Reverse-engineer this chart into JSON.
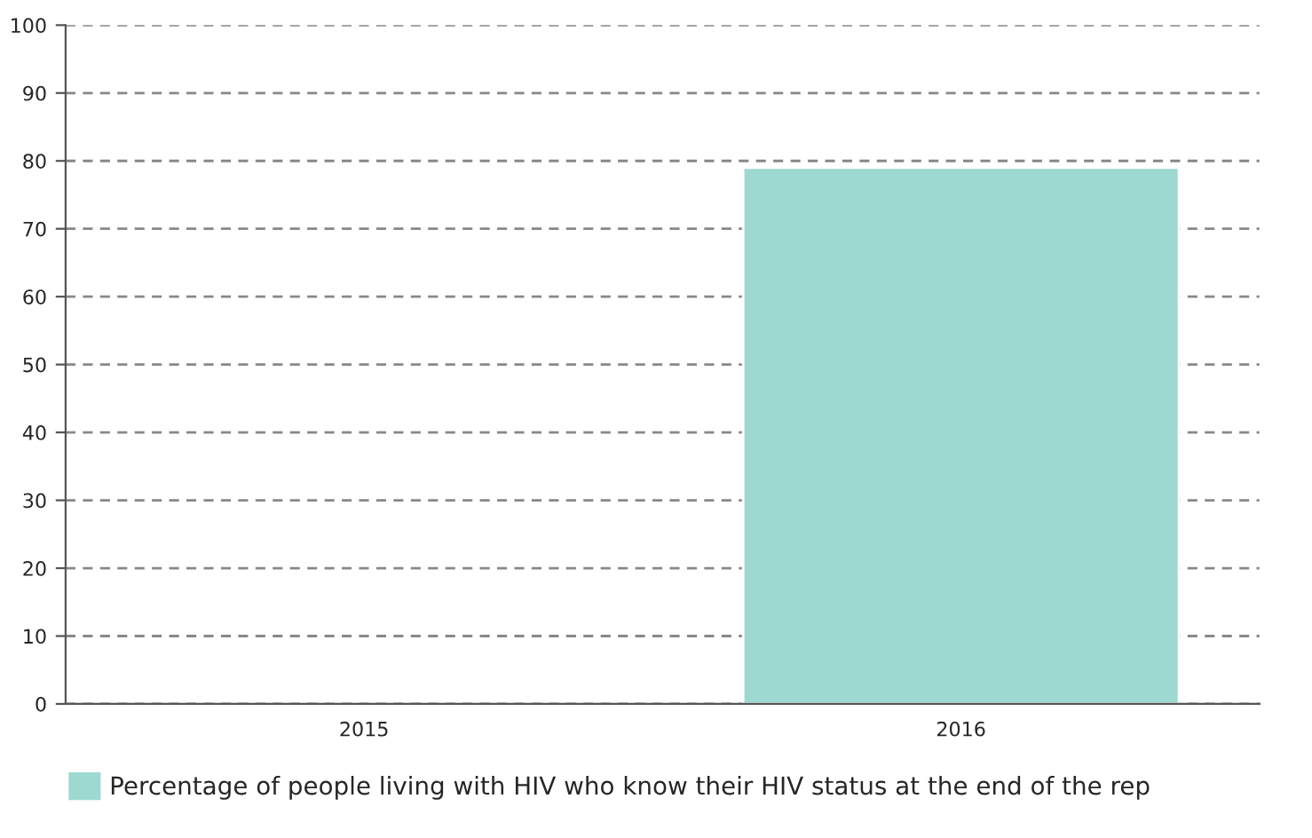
{
  "chart_data": {
    "type": "bar",
    "categories": [
      "2015",
      "2016"
    ],
    "series": [
      {
        "name": "Percentage of people living with HIV who know their HIV status at the end of the rep",
        "color": "#9dd8d1",
        "values": [
          null,
          79
        ]
      }
    ],
    "ylim": [
      0,
      100
    ],
    "yticks": [
      0,
      10,
      20,
      30,
      40,
      50,
      60,
      70,
      80,
      90,
      100
    ],
    "grid": "y",
    "line_style": "dashed",
    "legend": "bottom"
  }
}
